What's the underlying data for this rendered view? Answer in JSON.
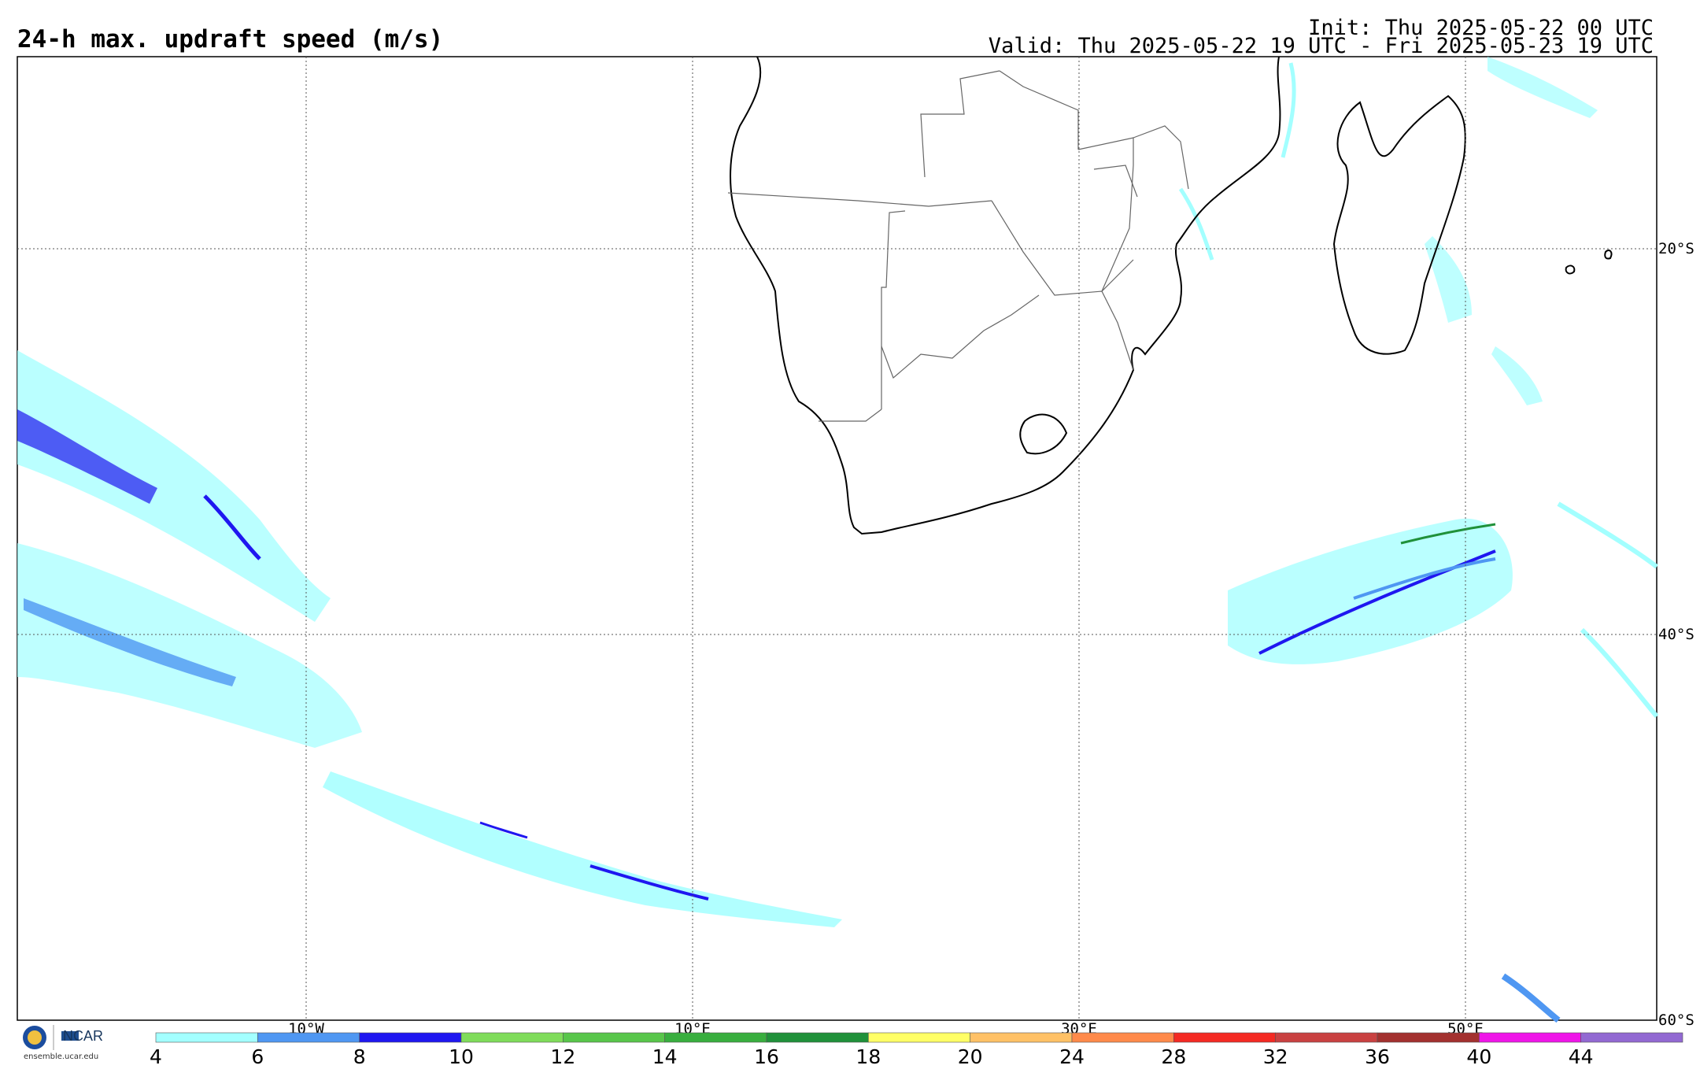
{
  "header": {
    "title": "24-h max. updraft speed (m/s)",
    "init": "Init: Thu 2025-05-22 00 UTC",
    "valid": "Valid: Thu 2025-05-22 19 UTC - Fri 2025-05-23 19 UTC"
  },
  "map": {
    "lon_labels": [
      "10°W",
      "10°E",
      "30°E",
      "50°E"
    ],
    "lat_labels": [
      "20°S",
      "40°S",
      "60°S"
    ]
  },
  "colorbar": {
    "ticks": [
      "4",
      "6",
      "8",
      "10",
      "12",
      "14",
      "16",
      "18",
      "20",
      "24",
      "28",
      "32",
      "36",
      "40",
      "44"
    ],
    "colors": [
      "#a3ffff",
      "#4f97f2",
      "#1f17f0",
      "#7fdc5a",
      "#58c64a",
      "#38ae3e",
      "#20913a",
      "#ffff66",
      "#ffc166",
      "#ff8a4a",
      "#f42a23",
      "#c94141",
      "#a3312f",
      "#ef15e8",
      "#9269d2"
    ]
  },
  "logos": {
    "ncar": "NCAR",
    "url": "ensemble.ucar.edu"
  }
}
